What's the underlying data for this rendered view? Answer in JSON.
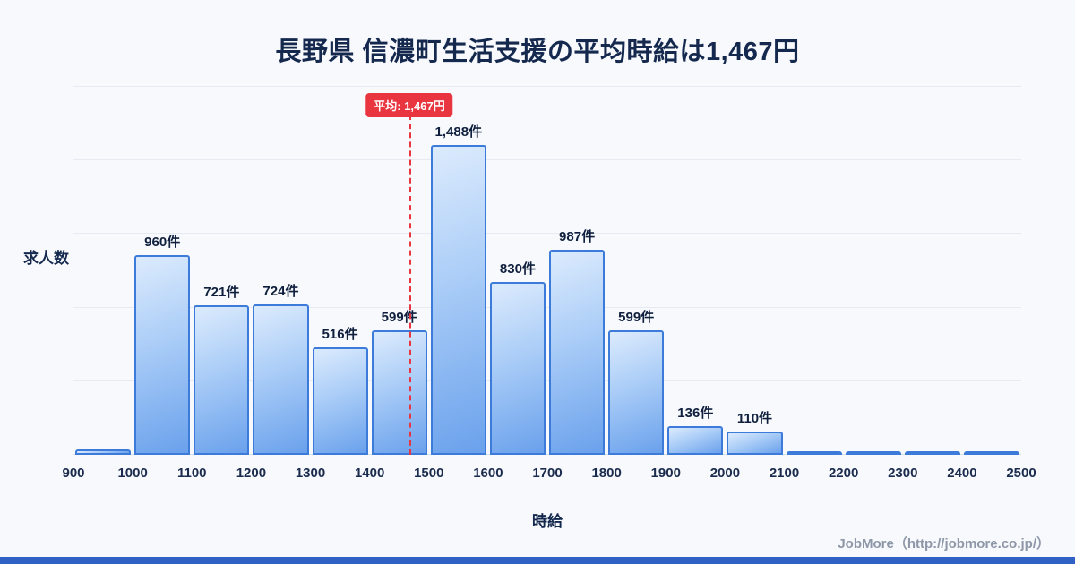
{
  "title": "長野県 信濃町生活支援の平均時給は1,467円",
  "footer": "JobMore（http://jobmore.co.jp/）",
  "chart_data": {
    "type": "bar",
    "title": "長野県 信濃町生活支援の平均時給は1,467円",
    "xlabel": "時給",
    "ylabel": "求人数",
    "x_min": 900,
    "x_max": 2500,
    "bin_width": 100,
    "x_ticks": [
      "900",
      "1000",
      "1100",
      "1200",
      "1300",
      "1400",
      "1500",
      "1600",
      "1700",
      "1800",
      "1900",
      "2000",
      "2100",
      "2200",
      "2300",
      "2400",
      "2500"
    ],
    "values": [
      25,
      960,
      721,
      724,
      516,
      599,
      1488,
      830,
      987,
      599,
      136,
      110,
      15,
      15,
      15,
      15
    ],
    "labels": [
      "",
      "960件",
      "721件",
      "724件",
      "516件",
      "599件",
      "1,488件",
      "830件",
      "987件",
      "599件",
      "136件",
      "110件",
      "",
      "",
      "",
      ""
    ],
    "ylim": [
      0,
      1550
    ],
    "grid": "horizontal",
    "legend": "none",
    "mean": {
      "value": 1467,
      "label": "平均: 1,467円"
    },
    "colors": {
      "bar_top": "#dcebfd",
      "bar_bottom": "#6aa1ec",
      "bar_border": "#3c7bd9",
      "mean_line": "#e8353f",
      "title_text": "#15294f",
      "background": "#f7f9fc",
      "bottom_strip": "#2f62c4"
    }
  }
}
